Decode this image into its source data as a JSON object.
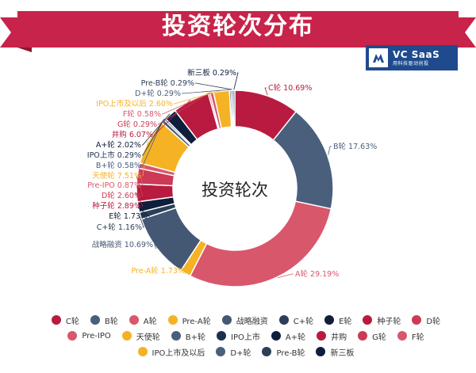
{
  "header": {
    "title": "投资轮次分布"
  },
  "logo": {
    "name": "VC SaaS",
    "tagline": "用科技驱动创投"
  },
  "colors": {
    "banner": "#c8234a",
    "banner_dark": "#8e1530",
    "label_line": "#7a7a7a"
  },
  "chart_data": {
    "type": "pie",
    "variant": "donut",
    "center_label": "投资轮次",
    "slices": [
      {
        "label": "C轮",
        "value": 10.69,
        "color": "#b81b3f",
        "display": "C轮 10.69%"
      },
      {
        "label": "B轮",
        "value": 17.63,
        "color": "#4a5f7b",
        "display": "B轮 17.63%"
      },
      {
        "label": "A轮",
        "value": 29.19,
        "color": "#d9576b",
        "display": "A轮 29.19%"
      },
      {
        "label": "Pre-A轮",
        "value": 1.73,
        "color": "#f4b224",
        "display": "Pre-A轮 1.73%"
      },
      {
        "label": "战略融资",
        "value": 10.69,
        "color": "#445874",
        "display": "战略融资 10.69%"
      },
      {
        "label": "C+轮",
        "value": 1.16,
        "color": "#2c3e58",
        "display": "C+轮 1.16%"
      },
      {
        "label": "E轮",
        "value": 1.73,
        "color": "#0f1e3c",
        "display": "E轮 1.73%"
      },
      {
        "label": "种子轮",
        "value": 2.89,
        "color": "#b81b3f",
        "display": "种子轮 2.89%"
      },
      {
        "label": "D轮",
        "value": 2.6,
        "color": "#cc3a55",
        "display": "D轮 2.60%"
      },
      {
        "label": "Pre-IPO",
        "value": 0.87,
        "color": "#d9576b",
        "display": "Pre-IPO 0.87%"
      },
      {
        "label": "天使轮",
        "value": 7.51,
        "color": "#f4b224",
        "display": "天使轮 7.51%"
      },
      {
        "label": "B+轮",
        "value": 0.58,
        "color": "#4a5f7b",
        "display": "B+轮 0.58%"
      },
      {
        "label": "IPO上市",
        "value": 0.29,
        "color": "#1b2f4f",
        "display": "IPO上市 0.29%"
      },
      {
        "label": "A+轮",
        "value": 2.02,
        "color": "#0f1e3c",
        "display": "A+轮 2.02%"
      },
      {
        "label": "井购",
        "value": 6.07,
        "color": "#b81b3f",
        "display": "井购 6.07%"
      },
      {
        "label": "G轮",
        "value": 0.29,
        "color": "#cc3a55",
        "display": "G轮 0.29%"
      },
      {
        "label": "F轮",
        "value": 0.58,
        "color": "#d9576b",
        "display": "F轮 0.58%"
      },
      {
        "label": "IPO上市及以后",
        "value": 2.6,
        "color": "#f4b224",
        "display": "IPO上市及以后 2.60%"
      },
      {
        "label": "D+轮",
        "value": 0.29,
        "color": "#4a5f7b",
        "display": "D+轮 0.29%"
      },
      {
        "label": "Pre-B轮",
        "value": 0.29,
        "color": "#2c3e58",
        "display": "Pre-B轮 0.29%"
      },
      {
        "label": "新三板",
        "value": 0.29,
        "color": "#0f1e3c",
        "display": "新三板 0.29%"
      }
    ]
  }
}
